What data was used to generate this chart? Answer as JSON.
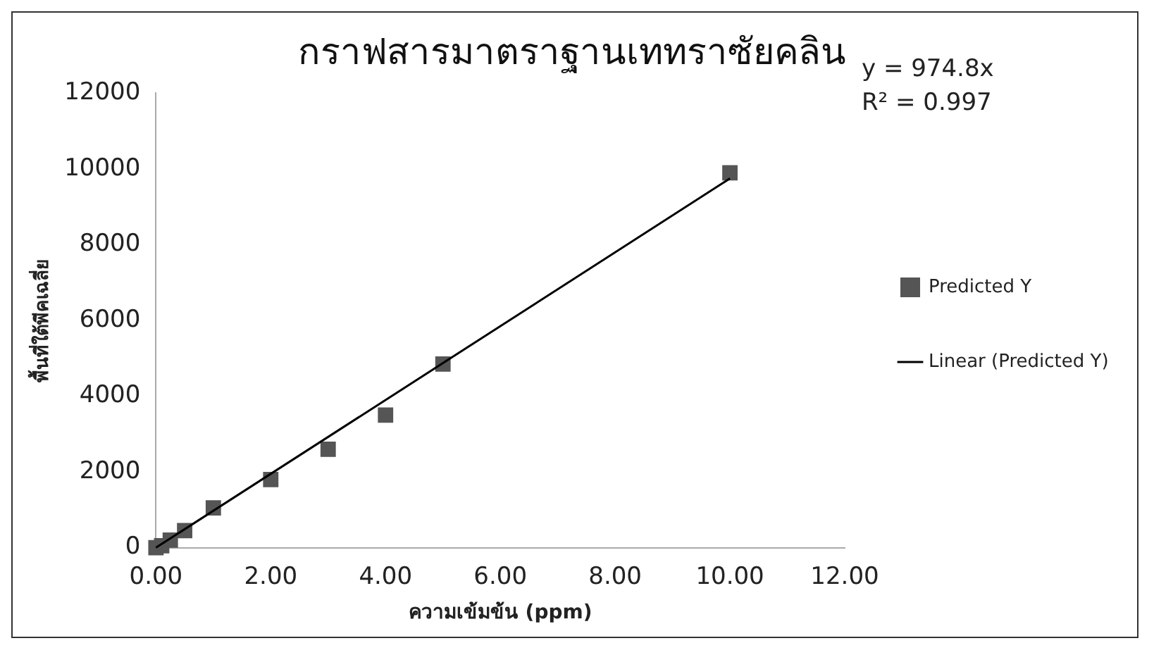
{
  "chart_data": {
    "type": "scatter",
    "title": "กราฟสารมาตราฐานเททราซัยคลิน",
    "xlabel": "ความเข้มข้น (ppm)",
    "ylabel": "พื้นที่ใต้พีคเฉลี่ย",
    "series": [
      {
        "name": "Predicted Y",
        "type": "scatter",
        "color": "#555555",
        "marker": "square",
        "x": [
          0,
          0.1,
          0.25,
          0.5,
          1,
          2,
          3,
          4,
          5,
          10
        ],
        "values": [
          0,
          50,
          200,
          450,
          1050,
          1800,
          2600,
          3500,
          4850,
          9900
        ]
      },
      {
        "name": "Linear (Predicted Y)",
        "type": "line",
        "color": "#000000",
        "marker": "none",
        "line_style": "solid",
        "x": [
          0,
          10
        ],
        "values": [
          0,
          9750
        ]
      }
    ],
    "xlim": [
      0,
      12
    ],
    "xticks": [
      {
        "value": 0,
        "label": "0.00"
      },
      {
        "value": 2,
        "label": "2.00"
      },
      {
        "value": 4,
        "label": "4.00"
      },
      {
        "value": 6,
        "label": "6.00"
      },
      {
        "value": 8,
        "label": "8.00"
      },
      {
        "value": 10,
        "label": "10.00"
      },
      {
        "value": 12,
        "label": "12.00"
      }
    ],
    "ylim": [
      0,
      12000
    ],
    "yticks": [
      0,
      2000,
      4000,
      6000,
      8000,
      10000,
      12000
    ],
    "grid": false,
    "legend": "right",
    "annotations": [
      "y = 974.8x",
      "R² = 0.997"
    ]
  }
}
